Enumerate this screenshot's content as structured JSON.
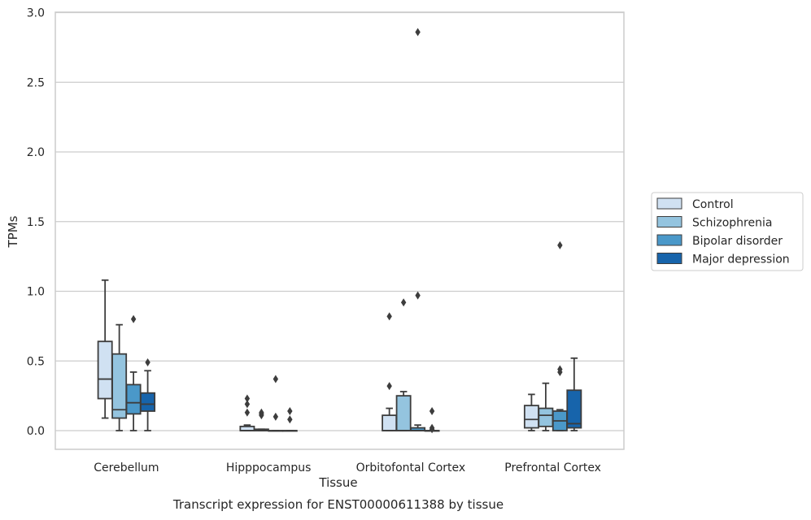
{
  "chart_data": {
    "type": "box",
    "xlabel": "Tissue",
    "ylabel": "TPMs",
    "caption": "Transcript expression for ENST00000611388 by tissue",
    "ylim": [
      -0.14,
      3.0
    ],
    "yticks": [
      0.0,
      0.5,
      1.0,
      1.5,
      2.0,
      2.5,
      3.0
    ],
    "ytick_labels": [
      "0.0",
      "0.5",
      "1.0",
      "1.5",
      "2.0",
      "2.5",
      "3.0"
    ],
    "grid": "horizontal",
    "legend_position": "right",
    "categories": [
      "Cerebellum",
      "Hipppocampus",
      "Orbitofontal Cortex",
      "Prefrontal Cortex"
    ],
    "series": [
      {
        "name": "Control",
        "color": "#d0e1f2",
        "boxes": [
          {
            "q1": 0.23,
            "median": 0.37,
            "q3": 0.64,
            "whislo": 0.09,
            "whishi": 1.08,
            "fliers": []
          },
          {
            "q1": 0.0,
            "median": 0.0,
            "q3": 0.03,
            "whislo": 0.0,
            "whishi": 0.04,
            "fliers": [
              0.13,
              0.19,
              0.23
            ]
          },
          {
            "q1": 0.0,
            "median": 0.0,
            "q3": 0.11,
            "whislo": 0.0,
            "whishi": 0.16,
            "fliers": [
              0.32,
              0.82
            ]
          },
          {
            "q1": 0.02,
            "median": 0.08,
            "q3": 0.18,
            "whislo": 0.0,
            "whishi": 0.26,
            "fliers": []
          }
        ]
      },
      {
        "name": "Schizophrenia",
        "color": "#94c4df",
        "boxes": [
          {
            "q1": 0.09,
            "median": 0.15,
            "q3": 0.55,
            "whislo": 0.0,
            "whishi": 0.76,
            "fliers": []
          },
          {
            "q1": 0.0,
            "median": 0.0,
            "q3": 0.01,
            "whislo": 0.0,
            "whishi": 0.01,
            "fliers": [
              0.11,
              0.12,
              0.13
            ]
          },
          {
            "q1": 0.0,
            "median": 0.0,
            "q3": 0.25,
            "whislo": 0.0,
            "whishi": 0.28,
            "fliers": [
              0.92
            ]
          },
          {
            "q1": 0.03,
            "median": 0.11,
            "q3": 0.16,
            "whislo": 0.0,
            "whishi": 0.34,
            "fliers": []
          }
        ]
      },
      {
        "name": "Bipolar disorder",
        "color": "#4a98c9",
        "boxes": [
          {
            "q1": 0.12,
            "median": 0.2,
            "q3": 0.33,
            "whislo": 0.0,
            "whishi": 0.42,
            "fliers": [
              0.8
            ]
          },
          {
            "q1": 0.0,
            "median": 0.0,
            "q3": 0.0,
            "whislo": 0.0,
            "whishi": 0.0,
            "fliers": [
              0.1,
              0.37
            ]
          },
          {
            "q1": 0.0,
            "median": 0.0,
            "q3": 0.02,
            "whislo": 0.0,
            "whishi": 0.04,
            "fliers": [
              0.97,
              2.86
            ]
          },
          {
            "q1": 0.0,
            "median": 0.07,
            "q3": 0.14,
            "whislo": 0.0,
            "whishi": 0.15,
            "fliers": [
              0.42,
              0.44,
              1.33
            ]
          }
        ]
      },
      {
        "name": "Major depression",
        "color": "#1764ab",
        "boxes": [
          {
            "q1": 0.14,
            "median": 0.19,
            "q3": 0.27,
            "whislo": 0.0,
            "whishi": 0.43,
            "fliers": [
              0.49
            ]
          },
          {
            "q1": 0.0,
            "median": 0.0,
            "q3": 0.0,
            "whislo": 0.0,
            "whishi": 0.0,
            "fliers": [
              0.08,
              0.14
            ]
          },
          {
            "q1": 0.0,
            "median": 0.0,
            "q3": 0.0,
            "whislo": 0.0,
            "whishi": 0.0,
            "fliers": [
              0.01,
              0.02,
              0.14
            ]
          },
          {
            "q1": 0.02,
            "median": 0.05,
            "q3": 0.29,
            "whislo": 0.0,
            "whishi": 0.52,
            "fliers": []
          }
        ]
      }
    ]
  }
}
